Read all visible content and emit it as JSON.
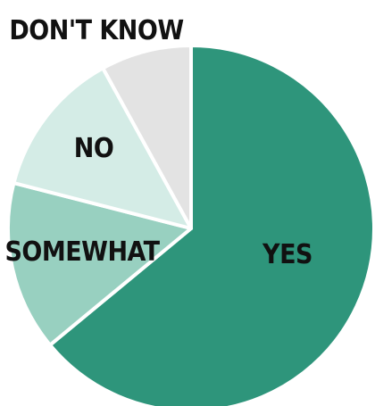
{
  "chart_data": {
    "type": "pie",
    "title": "",
    "categories": [
      "YES",
      "SOMEWHAT",
      "NO",
      "DON'T KNOW"
    ],
    "values": [
      64,
      15,
      13,
      8
    ],
    "colors": [
      "#2e957b",
      "#98d0c0",
      "#d4ece6",
      "#e3e3e3"
    ],
    "start": "12 o'clock",
    "direction": "clockwise",
    "legend": "none",
    "labels": {
      "yes": "YES",
      "somewhat": "SOMEWHAT",
      "no": "NO",
      "dont_know": "DON'T KNOW"
    }
  }
}
